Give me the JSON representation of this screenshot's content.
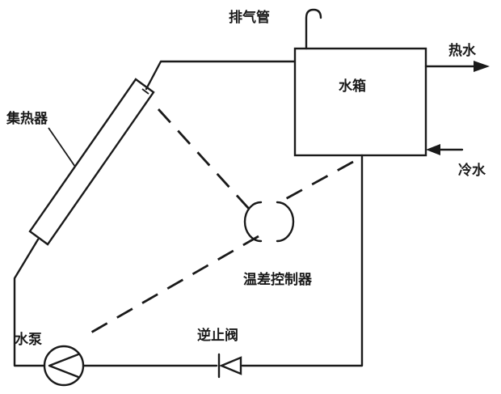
{
  "labels": {
    "vent_pipe": "排气管",
    "water_tank": "水箱",
    "hot_water": "热水",
    "cold_water": "冷水",
    "collector": "集热器",
    "temp_diff_controller": "温差控制器",
    "pump": "水泵",
    "check_valve": "逆止阀"
  }
}
